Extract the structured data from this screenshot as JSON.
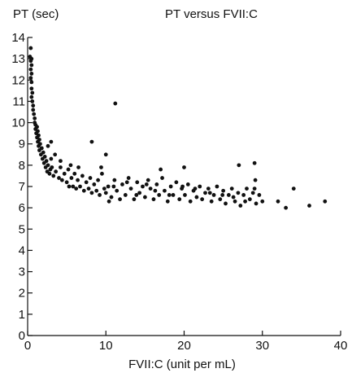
{
  "chart_data": {
    "type": "scatter",
    "title": "PT versus FVII:C",
    "ylabel": "PT (sec)",
    "xlabel": "FVII:C (unit per mL)",
    "xlim": [
      0,
      40
    ],
    "ylim": [
      0,
      14
    ],
    "x_ticks": [
      0,
      10,
      20,
      30,
      40
    ],
    "y_ticks": [
      0,
      1,
      2,
      3,
      4,
      5,
      6,
      7,
      8,
      9,
      10,
      11,
      12,
      13,
      14
    ],
    "grid": false,
    "point_color": "#111111",
    "points": [
      [
        0.4,
        13.5
      ],
      [
        0.3,
        13.1
      ],
      [
        0.5,
        13.0
      ],
      [
        0.4,
        12.9
      ],
      [
        0.5,
        12.7
      ],
      [
        0.4,
        12.5
      ],
      [
        0.5,
        12.3
      ],
      [
        0.4,
        12.1
      ],
      [
        0.5,
        11.9
      ],
      [
        0.5,
        11.6
      ],
      [
        0.6,
        11.4
      ],
      [
        0.5,
        11.2
      ],
      [
        0.6,
        11.0
      ],
      [
        0.7,
        10.8
      ],
      [
        0.7,
        10.6
      ],
      [
        0.8,
        10.4
      ],
      [
        0.9,
        10.2
      ],
      [
        0.9,
        10.0
      ],
      [
        1.0,
        9.9
      ],
      [
        1.0,
        9.7
      ],
      [
        1.2,
        9.8
      ],
      [
        1.1,
        9.5
      ],
      [
        1.3,
        9.6
      ],
      [
        1.2,
        9.3
      ],
      [
        1.4,
        9.4
      ],
      [
        1.3,
        9.1
      ],
      [
        1.5,
        9.2
      ],
      [
        1.4,
        8.9
      ],
      [
        1.6,
        9.0
      ],
      [
        1.5,
        8.7
      ],
      [
        1.8,
        8.8
      ],
      [
        1.7,
        8.5
      ],
      [
        2.0,
        8.6
      ],
      [
        1.9,
        8.3
      ],
      [
        2.2,
        8.4
      ],
      [
        2.1,
        8.1
      ],
      [
        2.4,
        8.2
      ],
      [
        2.3,
        7.9
      ],
      [
        2.6,
        8.0
      ],
      [
        2.5,
        7.7
      ],
      [
        2.9,
        7.8
      ],
      [
        2.8,
        7.6
      ],
      [
        3.1,
        7.9
      ],
      [
        3.3,
        7.5
      ],
      [
        3.0,
        8.3
      ],
      [
        3.5,
        8.5
      ],
      [
        3.6,
        7.7
      ],
      [
        4.0,
        7.4
      ],
      [
        4.2,
        7.9
      ],
      [
        4.4,
        7.3
      ],
      [
        4.7,
        7.6
      ],
      [
        5.0,
        7.2
      ],
      [
        5.2,
        7.8
      ],
      [
        5.3,
        7.0
      ],
      [
        5.6,
        7.4
      ],
      [
        5.8,
        7.0
      ],
      [
        6.0,
        7.6
      ],
      [
        6.2,
        6.9
      ],
      [
        6.4,
        7.3
      ],
      [
        6.7,
        7.0
      ],
      [
        7.0,
        7.5
      ],
      [
        7.2,
        6.8
      ],
      [
        7.5,
        7.2
      ],
      [
        7.8,
        6.9
      ],
      [
        8.0,
        7.4
      ],
      [
        8.2,
        6.7
      ],
      [
        8.5,
        7.1
      ],
      [
        8.8,
        6.8
      ],
      [
        9.0,
        7.3
      ],
      [
        9.2,
        6.6
      ],
      [
        9.5,
        7.6
      ],
      [
        9.8,
        6.9
      ],
      [
        3.0,
        9.1
      ],
      [
        2.6,
        8.9
      ],
      [
        4.2,
        8.2
      ],
      [
        5.5,
        8.0
      ],
      [
        6.5,
        7.9
      ],
      [
        8.2,
        9.1
      ],
      [
        9.4,
        7.9
      ],
      [
        10.0,
        8.5
      ],
      [
        10.0,
        6.7
      ],
      [
        10.3,
        7.0
      ],
      [
        10.7,
        6.5
      ],
      [
        11.1,
        7.3
      ],
      [
        11.4,
        6.8
      ],
      [
        11.8,
        6.4
      ],
      [
        12.1,
        7.1
      ],
      [
        12.5,
        6.6
      ],
      [
        12.9,
        7.4
      ],
      [
        13.2,
        6.9
      ],
      [
        13.6,
        6.4
      ],
      [
        14.0,
        7.2
      ],
      [
        14.3,
        6.7
      ],
      [
        14.7,
        7.0
      ],
      [
        15.0,
        6.5
      ],
      [
        15.4,
        7.3
      ],
      [
        15.7,
        6.9
      ],
      [
        16.1,
        6.4
      ],
      [
        16.5,
        7.1
      ],
      [
        16.8,
        6.6
      ],
      [
        17.2,
        7.4
      ],
      [
        17.5,
        6.8
      ],
      [
        17.9,
        6.3
      ],
      [
        18.3,
        7.0
      ],
      [
        18.6,
        6.6
      ],
      [
        19.0,
        7.2
      ],
      [
        19.4,
        6.4
      ],
      [
        19.7,
        6.9
      ],
      [
        20.1,
        6.6
      ],
      [
        20.5,
        7.1
      ],
      [
        20.8,
        6.3
      ],
      [
        21.2,
        6.8
      ],
      [
        21.6,
        6.5
      ],
      [
        22.0,
        7.0
      ],
      [
        22.3,
        6.4
      ],
      [
        22.7,
        6.7
      ],
      [
        23.1,
        6.9
      ],
      [
        23.5,
        6.3
      ],
      [
        23.8,
        6.6
      ],
      [
        24.2,
        7.0
      ],
      [
        24.6,
        6.4
      ],
      [
        25.0,
        6.8
      ],
      [
        25.3,
        6.2
      ],
      [
        25.7,
        6.6
      ],
      [
        26.1,
        6.9
      ],
      [
        26.5,
        6.3
      ],
      [
        26.9,
        6.7
      ],
      [
        27.2,
        6.1
      ],
      [
        27.6,
        6.6
      ],
      [
        28.0,
        6.9
      ],
      [
        28.4,
        6.4
      ],
      [
        28.8,
        6.7
      ],
      [
        29.2,
        6.2
      ],
      [
        29.6,
        6.6
      ],
      [
        30.0,
        6.3
      ],
      [
        10.4,
        6.3
      ],
      [
        11.0,
        7.0
      ],
      [
        12.7,
        7.2
      ],
      [
        13.9,
        6.6
      ],
      [
        15.2,
        7.1
      ],
      [
        16.3,
        6.8
      ],
      [
        18.1,
        6.6
      ],
      [
        19.8,
        7.0
      ],
      [
        21.4,
        6.9
      ],
      [
        23.3,
        6.7
      ],
      [
        24.9,
        6.6
      ],
      [
        26.3,
        6.5
      ],
      [
        27.8,
        6.3
      ],
      [
        29.0,
        6.9
      ],
      [
        11.2,
        10.9
      ],
      [
        17.0,
        7.8
      ],
      [
        20.0,
        7.9
      ],
      [
        27.0,
        8.0
      ],
      [
        29.0,
        8.1
      ],
      [
        29.1,
        7.3
      ],
      [
        32.0,
        6.3
      ],
      [
        33.0,
        6.0
      ],
      [
        34.0,
        6.9
      ],
      [
        36.0,
        6.1
      ],
      [
        38.0,
        6.3
      ]
    ]
  }
}
